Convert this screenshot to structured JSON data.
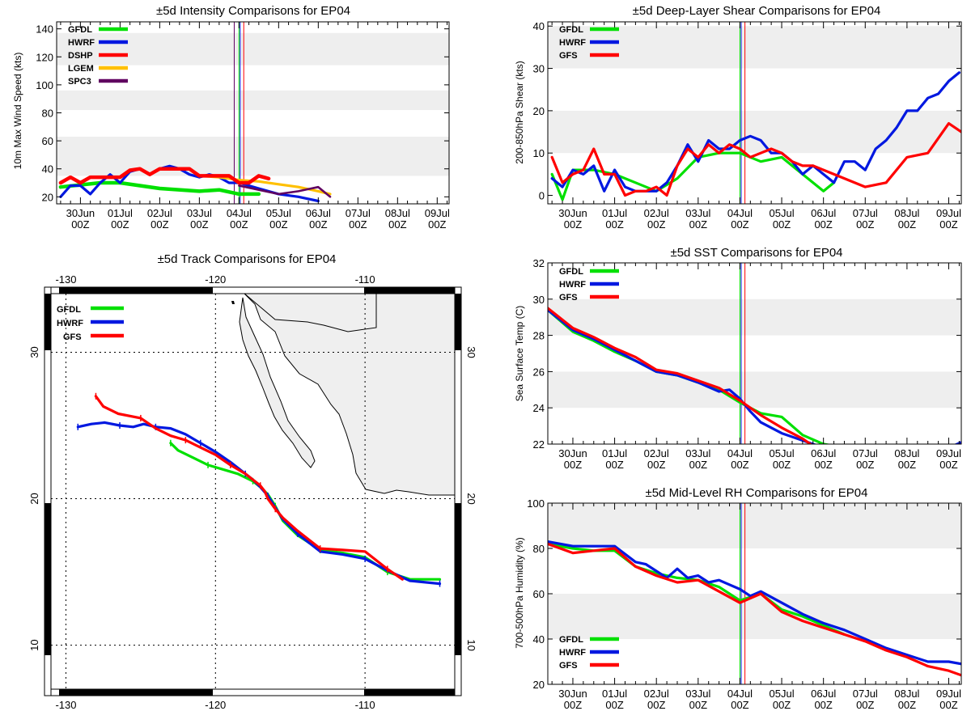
{
  "colors": {
    "GFDL": "#00e000",
    "HWRF": "#0018e0",
    "GFS": "#ff0000",
    "DSHP": "#ff0000",
    "LGEM": "#ffc000",
    "SPC3": "#600060",
    "band": "#eeeeee",
    "land": "#efefef"
  },
  "time_axis": {
    "day_labels": [
      "30Jun",
      "01Jul",
      "02Jul",
      "03Jul",
      "04Jul",
      "05Jul",
      "06Jul",
      "07Jul",
      "08Jul",
      "09Jul"
    ],
    "hour_label": "00Z"
  },
  "chart_data": [
    {
      "id": "intensity",
      "type": "line",
      "title": "±5d Intensity Comparisons for EP04",
      "ylabel": "10m Max Wind Speed (kts)",
      "xlabel": "",
      "xlim": [
        -0.6,
        9.3
      ],
      "ylim": [
        15,
        145
      ],
      "yticks": [
        20,
        40,
        60,
        80,
        100,
        120,
        140
      ],
      "bands": [
        [
          35,
          63
        ],
        [
          82,
          96
        ],
        [
          114,
          137
        ]
      ],
      "vlines": [
        {
          "x": 3.88,
          "color": "SPC3"
        },
        {
          "x": 4.0,
          "color": "GFDL"
        },
        {
          "x": 4.03,
          "color": "HWRF"
        },
        {
          "x": 4.12,
          "color": "GFS"
        }
      ],
      "legend": [
        "GFDL",
        "HWRF",
        "DSHP",
        "LGEM",
        "SPC3"
      ],
      "series": [
        {
          "name": "GFDL",
          "width": 4.5,
          "x": [
            -0.5,
            0.5,
            1.0,
            2.0,
            3.0,
            3.5,
            4.0,
            4.5
          ],
          "y": [
            27,
            30,
            30,
            26,
            24,
            25,
            22,
            22
          ]
        },
        {
          "name": "HWRF",
          "width": 3.2,
          "x": [
            -0.5,
            -0.25,
            0.0,
            0.25,
            0.5,
            0.75,
            1.0,
            1.25,
            1.5,
            1.75,
            2.0,
            2.25,
            2.5,
            2.75,
            3.0,
            3.25,
            3.5,
            3.75,
            4.0,
            4.25,
            4.5,
            5.0,
            5.5,
            6.0
          ],
          "y": [
            20,
            28,
            28,
            22,
            30,
            36,
            30,
            38,
            40,
            36,
            40,
            42,
            40,
            36,
            34,
            36,
            34,
            30,
            30,
            28,
            26,
            22,
            20,
            17
          ]
        },
        {
          "name": "LGEM",
          "width": 3.2,
          "x": [
            3.0,
            3.5,
            4.0,
            4.5,
            5.0,
            5.5,
            6.0,
            6.3
          ],
          "y": [
            35,
            34,
            32,
            31,
            29,
            27,
            24,
            22
          ]
        },
        {
          "name": "SPC3",
          "width": 2.6,
          "x": [
            4.0,
            4.5,
            5.0,
            5.5,
            6.0,
            6.3
          ],
          "y": [
            28,
            25,
            22,
            24,
            27,
            20
          ]
        },
        {
          "name": "DSHP",
          "width": 4.5,
          "x": [
            -0.5,
            -0.25,
            0.0,
            0.25,
            0.5,
            0.75,
            1.0,
            1.25,
            1.5,
            1.75,
            2.0,
            2.25,
            2.5,
            2.75,
            3.0,
            3.25,
            3.5,
            3.75,
            4.0,
            4.25,
            4.5,
            4.75
          ],
          "y": [
            30,
            34,
            30,
            34,
            34,
            34,
            34,
            39,
            40,
            36,
            40,
            40,
            40,
            40,
            35,
            35,
            35,
            35,
            30,
            30,
            35,
            33
          ]
        }
      ]
    },
    {
      "id": "shear",
      "type": "line",
      "title": "±5d Deep-Layer Shear Comparisons for EP04",
      "ylabel": "200-850hPa Shear (kts)",
      "xlabel": "",
      "xlim": [
        -0.6,
        9.3
      ],
      "ylim": [
        -2,
        41
      ],
      "yticks": [
        0,
        10,
        20,
        30,
        40
      ],
      "bands": [
        [
          10,
          20
        ],
        [
          30,
          40
        ]
      ],
      "vlines": [
        {
          "x": 4.0,
          "color": "GFDL"
        },
        {
          "x": 4.03,
          "color": "HWRF"
        },
        {
          "x": 4.12,
          "color": "GFS"
        }
      ],
      "legend": [
        "GFDL",
        "HWRF",
        "GFS"
      ],
      "series": [
        {
          "name": "GFDL",
          "width": 3.2,
          "x": [
            -0.5,
            -0.25,
            0.0,
            0.5,
            1.0,
            1.5,
            2.0,
            2.5,
            3.0,
            3.5,
            4.0,
            4.5,
            5.0,
            5.5,
            6.0,
            6.25
          ],
          "y": [
            5,
            -1,
            6,
            6,
            5,
            3,
            1,
            4,
            9,
            10,
            10,
            8,
            9,
            5,
            1,
            3
          ]
        },
        {
          "name": "HWRF",
          "width": 3.2,
          "x": [
            -0.5,
            -0.25,
            0.0,
            0.25,
            0.5,
            0.75,
            1.0,
            1.25,
            1.5,
            1.75,
            2.0,
            2.25,
            2.5,
            2.75,
            3.0,
            3.25,
            3.5,
            3.75,
            4.0,
            4.25,
            4.5,
            4.75,
            5.0,
            5.25,
            5.5,
            5.75,
            6.0,
            6.25,
            6.5,
            6.75,
            7.0,
            7.25,
            7.5,
            7.75,
            8.0,
            8.25,
            8.5,
            8.75,
            9.0,
            9.25
          ],
          "y": [
            4,
            2,
            6,
            5,
            7,
            1,
            6,
            2,
            1,
            1,
            1,
            3,
            7,
            12,
            8,
            13,
            11,
            11,
            13,
            14,
            13,
            10,
            10,
            8,
            5,
            7,
            5,
            3,
            8,
            8,
            6,
            11,
            13,
            16,
            20,
            20,
            23,
            24,
            27,
            29
          ]
        },
        {
          "name": "GFS",
          "width": 3.2,
          "x": [
            -0.5,
            -0.25,
            0.0,
            0.25,
            0.5,
            0.75,
            1.0,
            1.25,
            1.5,
            1.75,
            2.0,
            2.25,
            2.5,
            2.75,
            3.0,
            3.25,
            3.5,
            3.75,
            4.0,
            4.25,
            4.5,
            4.75,
            5.0,
            5.25,
            5.5,
            5.75,
            6.0,
            6.5,
            7.0,
            7.5,
            8.0,
            8.5,
            9.0,
            9.3
          ],
          "y": [
            9,
            3,
            5,
            6,
            11,
            5,
            5,
            0,
            1,
            1,
            2,
            0,
            7,
            11,
            9,
            12,
            10,
            12,
            11,
            9,
            10,
            11,
            10,
            8,
            7,
            7,
            6,
            4,
            2,
            3,
            9,
            10,
            17,
            15
          ]
        }
      ]
    },
    {
      "id": "sst",
      "type": "line",
      "title": "±5d SST Comparisons for EP04",
      "ylabel": "Sea Surface Temp (C)",
      "xlabel": "",
      "xlim": [
        -0.6,
        9.3
      ],
      "ylim": [
        22,
        32
      ],
      "yticks": [
        22,
        24,
        26,
        28,
        30,
        32
      ],
      "bands": [
        [
          24,
          26
        ],
        [
          28,
          30
        ]
      ],
      "vlines": [
        {
          "x": 4.0,
          "color": "GFDL"
        },
        {
          "x": 4.03,
          "color": "HWRF"
        },
        {
          "x": 4.12,
          "color": "GFS"
        }
      ],
      "legend": [
        "GFDL",
        "HWRF",
        "GFS"
      ],
      "series": [
        {
          "name": "GFDL",
          "width": 3.2,
          "x": [
            -0.6,
            0.0,
            0.5,
            1.0,
            1.5,
            2.0,
            2.5,
            3.0,
            3.5,
            4.0,
            4.5,
            5.0,
            5.5,
            6.0,
            6.5
          ],
          "y": [
            29.4,
            28.2,
            27.7,
            27.1,
            26.6,
            26.0,
            25.8,
            25.4,
            25.0,
            24.3,
            23.7,
            23.5,
            22.5,
            22.0,
            21.8
          ]
        },
        {
          "name": "HWRF",
          "width": 3.2,
          "x": [
            -0.6,
            0.0,
            0.5,
            1.0,
            1.5,
            2.0,
            2.5,
            3.0,
            3.5,
            3.75,
            4.0,
            4.25,
            4.5,
            5.0,
            5.5,
            6.0,
            9.0,
            9.3
          ],
          "y": [
            29.4,
            28.3,
            27.8,
            27.2,
            26.6,
            26.0,
            25.8,
            25.4,
            24.9,
            25.0,
            24.5,
            23.8,
            23.2,
            22.6,
            22.2,
            21.8,
            21.8,
            22.1
          ]
        },
        {
          "name": "GFS",
          "width": 3.2,
          "x": [
            -0.6,
            0.0,
            0.5,
            1.0,
            1.5,
            2.0,
            2.5,
            3.0,
            3.5,
            4.0,
            4.5,
            5.0,
            5.5,
            5.75
          ],
          "y": [
            29.5,
            28.4,
            27.9,
            27.3,
            26.8,
            26.1,
            25.9,
            25.5,
            25.1,
            24.4,
            23.6,
            22.9,
            22.3,
            21.9
          ]
        }
      ]
    },
    {
      "id": "rh",
      "type": "line",
      "title": "±5d Mid-Level RH Comparisons for EP04",
      "ylabel": "700-500hPa Humidity (%)",
      "xlabel": "",
      "xlim": [
        -0.6,
        9.3
      ],
      "ylim": [
        20,
        100
      ],
      "yticks": [
        20,
        40,
        60,
        80,
        100
      ],
      "bands": [
        [
          40,
          60
        ],
        [
          80,
          100
        ]
      ],
      "vlines": [
        {
          "x": 4.0,
          "color": "GFDL"
        },
        {
          "x": 4.03,
          "color": "HWRF"
        },
        {
          "x": 4.12,
          "color": "GFS"
        }
      ],
      "legend": [
        "GFDL",
        "HWRF",
        "GFS"
      ],
      "legend_position": "bottom-left",
      "series": [
        {
          "name": "GFDL",
          "width": 3.2,
          "x": [
            -0.6,
            0.0,
            0.5,
            1.0,
            1.5,
            2.0,
            2.5,
            3.0,
            3.5,
            4.0,
            4.5,
            5.0,
            5.5,
            6.0,
            6.5
          ],
          "y": [
            82,
            80,
            79,
            79,
            72,
            69,
            67,
            66,
            63,
            57,
            60,
            53,
            50,
            46,
            42
          ]
        },
        {
          "name": "HWRF",
          "width": 3.2,
          "x": [
            -0.6,
            0.0,
            0.5,
            1.0,
            1.5,
            1.75,
            2.0,
            2.25,
            2.5,
            2.75,
            3.0,
            3.25,
            3.5,
            3.75,
            4.0,
            4.25,
            4.5,
            5.0,
            5.5,
            6.0,
            6.5,
            7.0,
            7.5,
            8.0,
            8.5,
            9.0,
            9.3
          ],
          "y": [
            83,
            81,
            81,
            81,
            74,
            73,
            70,
            67,
            71,
            67,
            68,
            65,
            66,
            64,
            62,
            59,
            61,
            56,
            51,
            47,
            44,
            40,
            36,
            33,
            30,
            30,
            29
          ]
        },
        {
          "name": "GFS",
          "width": 3.2,
          "x": [
            -0.6,
            0.0,
            0.5,
            1.0,
            1.5,
            2.0,
            2.5,
            3.0,
            3.5,
            4.0,
            4.5,
            5.0,
            5.5,
            6.0,
            6.5,
            7.0,
            7.5,
            8.0,
            8.5,
            9.0,
            9.3
          ],
          "y": [
            82,
            78,
            79,
            80,
            72,
            68,
            65,
            66,
            61,
            56,
            60,
            52,
            48,
            45,
            42,
            39,
            35,
            32,
            28,
            26,
            24
          ]
        }
      ]
    },
    {
      "id": "track",
      "type": "line",
      "title": "±5d Track Comparisons for EP04",
      "xlabel": "",
      "ylabel": "",
      "xlim": [
        -131,
        -104
      ],
      "ylim": [
        7,
        34
      ],
      "lon_ticks": [
        -130,
        -120,
        -110
      ],
      "lat_ticks": [
        10,
        20,
        30
      ],
      "legend": [
        "GFDL",
        "HWRF",
        "GFS"
      ],
      "series": [
        {
          "name": "GFDL",
          "width": 3.2,
          "lon": [
            -123,
            -122.5,
            -121.5,
            -120.5,
            -119.5,
            -118.5,
            -117.5,
            -117.0,
            -116.5,
            -116.0,
            -115.5,
            -114.5,
            -113.0,
            -111.5,
            -110.0,
            -108.5,
            -107.0,
            -105.0
          ],
          "lat": [
            23.8,
            23.3,
            22.8,
            22.3,
            22.0,
            21.7,
            21.2,
            20.8,
            20.3,
            19.5,
            18.5,
            17.5,
            16.5,
            16.3,
            16.0,
            15.0,
            14.5,
            14.5
          ]
        },
        {
          "name": "HWRF",
          "width": 3.2,
          "lon": [
            -129.2,
            -128.3,
            -127.4,
            -126.4,
            -125.5,
            -124.8,
            -124.0,
            -123.0,
            -122.0,
            -121.0,
            -120.0,
            -119.0,
            -118.0,
            -117.5,
            -117.0,
            -116.5,
            -116.0,
            -115.5,
            -114.5,
            -113.0,
            -111.5,
            -110.0,
            -108.5,
            -107.0,
            -105.0
          ],
          "lat": [
            24.9,
            25.1,
            25.2,
            25.0,
            24.9,
            25.1,
            24.9,
            24.8,
            24.4,
            23.8,
            23.2,
            22.5,
            21.7,
            21.3,
            20.8,
            20.2,
            19.4,
            18.6,
            17.6,
            16.4,
            16.2,
            15.9,
            15.1,
            14.4,
            14.2
          ]
        },
        {
          "name": "GFS",
          "width": 3.2,
          "lon": [
            -128.0,
            -127.5,
            -126.5,
            -125.0,
            -124.0,
            -123.0,
            -122.0,
            -121.0,
            -120.0,
            -119.0,
            -118.0,
            -117.5,
            -117.0,
            -116.7,
            -116.5,
            -116.0,
            -115.5,
            -114.5,
            -113.0,
            -111.5,
            -110.0,
            -108.5,
            -107.5
          ],
          "lat": [
            27.0,
            26.3,
            25.8,
            25.5,
            24.8,
            24.3,
            24.0,
            23.5,
            23.0,
            22.3,
            21.7,
            21.3,
            20.9,
            20.5,
            20.0,
            19.3,
            18.7,
            17.8,
            16.6,
            16.5,
            16.4,
            15.2,
            14.5
          ]
        }
      ]
    }
  ]
}
